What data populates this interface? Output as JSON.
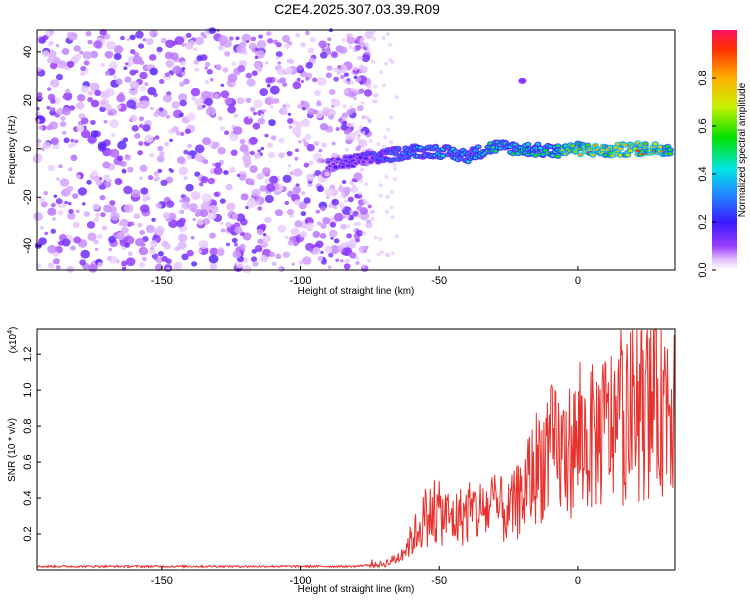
{
  "title": "C2E4.2025.307.03.39.R09",
  "chart_data": [
    {
      "type": "heatmap",
      "xlabel": "Height of straight line (km)",
      "ylabel": "Frequency (Hz)",
      "xlim": [
        -195,
        35
      ],
      "ylim": [
        -50,
        49
      ],
      "xticks": [
        -150,
        -100,
        -50,
        0
      ],
      "yticks": [
        -40,
        -20,
        0,
        20,
        40
      ],
      "noise_region_x": [
        -195,
        -75
      ],
      "signal_ridge": [
        {
          "x": -90,
          "freq": -7,
          "amp": 0.18
        },
        {
          "x": -80,
          "freq": -5,
          "amp": 0.22
        },
        {
          "x": -70,
          "freq": -3,
          "amp": 0.3
        },
        {
          "x": -60,
          "freq": -1,
          "amp": 0.38
        },
        {
          "x": -50,
          "freq": -1,
          "amp": 0.42
        },
        {
          "x": -40,
          "freq": -3,
          "amp": 0.4
        },
        {
          "x": -30,
          "freq": 1,
          "amp": 0.48
        },
        {
          "x": -20,
          "freq": 0,
          "amp": 0.5
        },
        {
          "x": -10,
          "freq": -1,
          "amp": 0.58
        },
        {
          "x": 0,
          "freq": 0,
          "amp": 0.8
        },
        {
          "x": 10,
          "freq": -1,
          "amp": 0.75
        },
        {
          "x": 20,
          "freq": 0,
          "amp": 0.85
        },
        {
          "x": 30,
          "freq": 0,
          "amp": 0.8
        }
      ],
      "colorbar": {
        "label": "Normalized spectral amplitude",
        "range": [
          0,
          1
        ],
        "ticks": [
          "0.0",
          "0.2",
          "0.4",
          "0.6",
          "0.8"
        ]
      }
    },
    {
      "type": "line",
      "xlabel": "Height of straight line (km)",
      "ylabel": "SNR (10 * v/v)",
      "multiplier": "(x10",
      "multiplier_exp": "4",
      "xlim": [
        -195,
        35
      ],
      "ylim": [
        0,
        1.34
      ],
      "xticks": [
        -150,
        -100,
        -50,
        0
      ],
      "yticks": [
        0.2,
        0.4,
        0.6,
        0.8,
        1.0,
        1.2
      ],
      "ytick_labels": [
        "0.2",
        "0.4",
        "0.6",
        "0.8",
        "1.0",
        "1.2"
      ],
      "color": "#e8302c",
      "series": [
        {
          "x": [
            -195,
            -150,
            -100,
            -80,
            -70,
            -65,
            -60,
            -55,
            -50,
            -45,
            -40,
            -35,
            -30,
            -25,
            -20,
            -15,
            -10,
            -5,
            0,
            5,
            10,
            15,
            20,
            25,
            30,
            35
          ],
          "values": [
            0.02,
            0.02,
            0.02,
            0.02,
            0.04,
            0.08,
            0.2,
            0.36,
            0.38,
            0.34,
            0.38,
            0.4,
            0.42,
            0.38,
            0.5,
            0.7,
            0.8,
            0.78,
            0.85,
            0.88,
            0.95,
            1.0,
            1.05,
            1.1,
            1.15,
            1.22
          ]
        }
      ]
    }
  ]
}
